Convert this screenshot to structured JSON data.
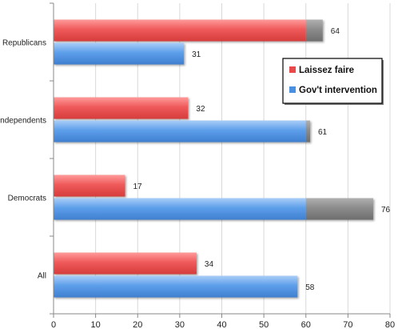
{
  "chart_data": {
    "type": "bar",
    "orientation": "horizontal",
    "categories": [
      "Republicans",
      "Independents",
      "Democrats",
      "All"
    ],
    "series": [
      {
        "name": "Laissez faire",
        "values": [
          64,
          32,
          17,
          34
        ],
        "color": "#e8494b"
      },
      {
        "name": "Gov't intervention",
        "values": [
          31,
          61,
          76,
          58
        ],
        "color": "#4a90e2"
      }
    ],
    "highlight_above": 60,
    "highlight_color": "#8a8a8a",
    "xlim": [
      0,
      80
    ],
    "x_ticks": [
      0,
      10,
      20,
      30,
      40,
      50,
      60,
      70,
      80
    ],
    "grid": true,
    "legend_position": "right"
  }
}
